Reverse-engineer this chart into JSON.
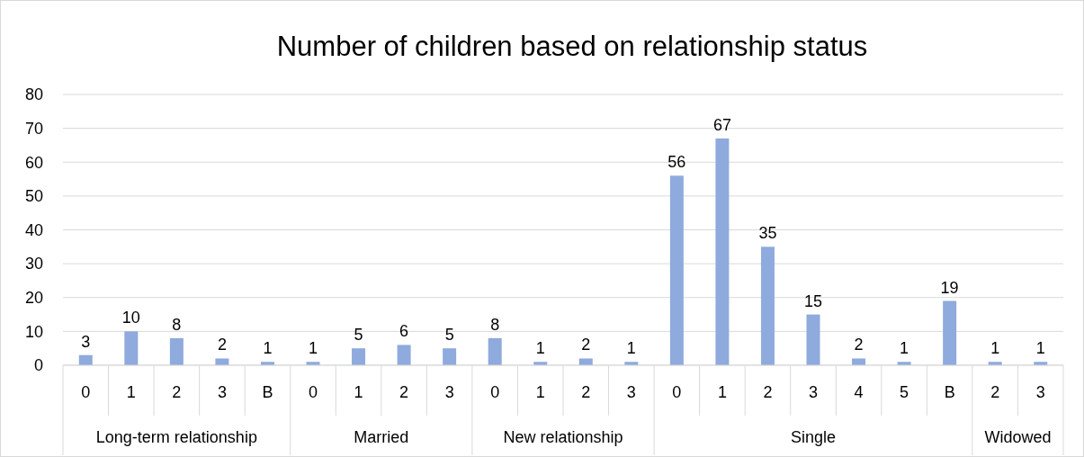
{
  "chart_data": {
    "type": "bar",
    "title": "Number of children based on relationship status",
    "categories": [
      "0",
      "1",
      "2",
      "3",
      "B",
      "0",
      "1",
      "2",
      "3",
      "0",
      "1",
      "2",
      "3",
      "0",
      "1",
      "2",
      "3",
      "4",
      "5",
      "B",
      "2",
      "3"
    ],
    "values": [
      3,
      10,
      8,
      2,
      1,
      1,
      5,
      6,
      5,
      8,
      1,
      2,
      1,
      56,
      67,
      35,
      15,
      2,
      1,
      19,
      1,
      1
    ],
    "color": "#8faadc",
    "ylim": [
      0,
      80
    ],
    "yticks": [
      0,
      10,
      20,
      30,
      40,
      50,
      60,
      70,
      80
    ],
    "grid": "y",
    "data_labels": true,
    "annotations": [
      "Long-term relationship",
      "Married",
      "New relationship",
      "Single",
      "Widowed"
    ]
  }
}
